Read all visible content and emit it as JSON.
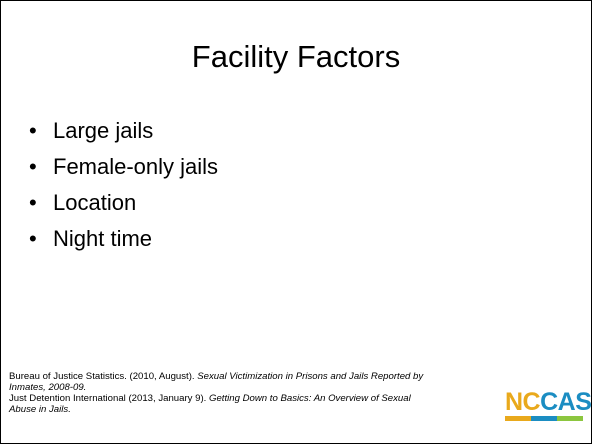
{
  "slide": {
    "title": "Facility Factors",
    "bullets": [
      "Large jails",
      "Female-only jails",
      "Location",
      "Night time"
    ],
    "citations": [
      {
        "text": "Bureau of Justice Statistics. (2010, August). ",
        "source": "Sexual Victimization in Prisons and Jails Reported by Inmates, 2008-09."
      },
      {
        "text": "Just Detention International (2013, January 9). ",
        "source": "Getting Down to Basics: An Overview of Sexual Abuse in Jails."
      }
    ],
    "logo": {
      "part1": "NC",
      "part2": "CASA"
    }
  }
}
